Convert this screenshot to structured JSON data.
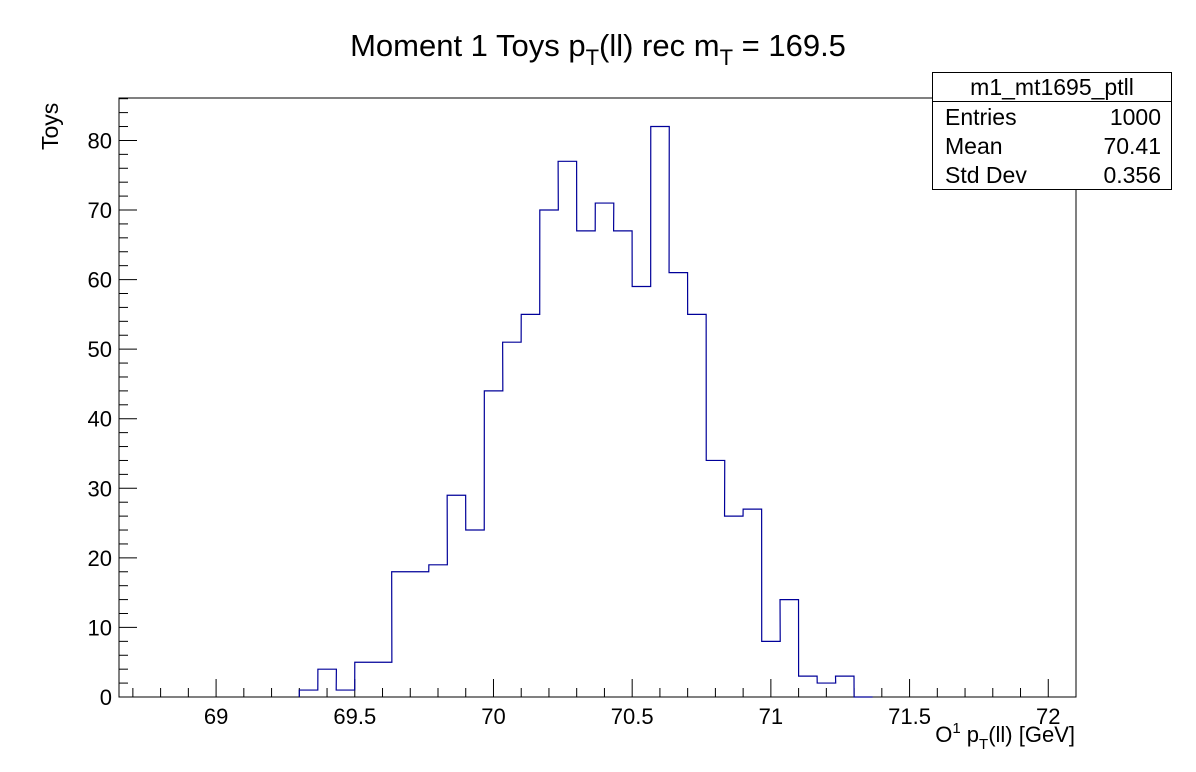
{
  "chart_data": {
    "type": "histogram",
    "title": "Moment 1 Toys  p_T(ll) rec  m_T = 169.5",
    "title_parts": {
      "p1": "Moment 1 Toys  p",
      "s1": "T",
      "p2": "(ll) rec  m",
      "s2": "T",
      "p3": " = 169.5"
    },
    "xlabel": "O¹ p_T(ll) [GeV]",
    "xlabel_parts": {
      "p1": "O",
      "sup": "1",
      "p2": " p",
      "sub": "T",
      "p3": "(ll) [GeV]"
    },
    "ylabel": "Toys",
    "xlim": [
      68.65,
      72.1
    ],
    "ylim": [
      0,
      86.1
    ],
    "bin_width": 0.0667,
    "bin_low_edges": [
      69.3,
      69.367,
      69.433,
      69.5,
      69.567,
      69.633,
      69.7,
      69.767,
      69.833,
      69.9,
      69.967,
      70.033,
      70.1,
      70.167,
      70.233,
      70.3,
      70.367,
      70.433,
      70.5,
      70.567,
      70.633,
      70.7,
      70.767,
      70.833,
      70.9,
      70.967,
      71.033,
      71.1,
      71.167,
      71.233,
      71.3
    ],
    "values": [
      1,
      4,
      1,
      5,
      5,
      18,
      18,
      19,
      29,
      24,
      44,
      51,
      55,
      70,
      77,
      67,
      71,
      67,
      59,
      82,
      61,
      55,
      34,
      26,
      27,
      8,
      14,
      3,
      2,
      3,
      0
    ],
    "x_ticks": [
      "69",
      "69.5",
      "70",
      "70.5",
      "71",
      "71.5",
      "72"
    ],
    "y_ticks": [
      "0",
      "10",
      "20",
      "30",
      "40",
      "50",
      "60",
      "70",
      "80"
    ],
    "line_color": "#000099",
    "grid": false,
    "legend": "none",
    "stats_box": {
      "name": "m1_mt1695_ptll",
      "entries_label": "Entries",
      "entries": "1000",
      "mean_label": "Mean",
      "mean": "70.41",
      "std_label": "Std Dev",
      "std": "0.356"
    }
  }
}
